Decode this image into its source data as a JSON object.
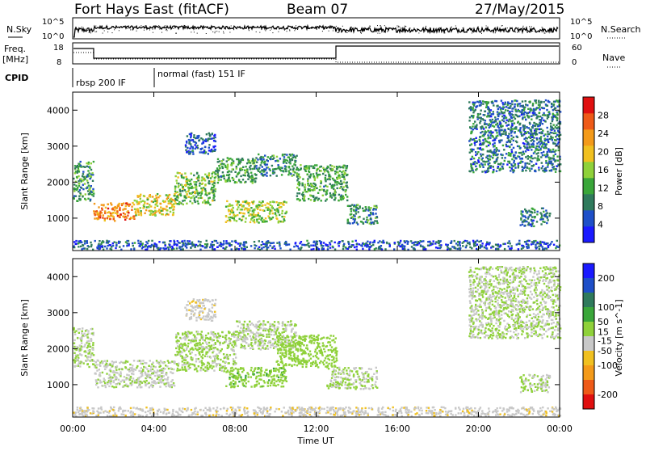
{
  "header": {
    "station": "Fort Hays East (fitACF)",
    "beam": "Beam 07",
    "date": "27/May/2015"
  },
  "summary_panels": {
    "nsky": {
      "label": "N.Sky",
      "right_label": "N.Search",
      "left_ticks": [
        "10^5",
        "10^0"
      ],
      "right_ticks": [
        "10^5",
        "10^0"
      ]
    },
    "freq": {
      "label": "Freq.",
      "unit": "[MHz]",
      "left_ticks": [
        18,
        8
      ],
      "right_label": "Nave",
      "right_ticks": [
        60,
        0
      ]
    },
    "cpid": {
      "label": "CPID",
      "modes": [
        {
          "name": "rbsp 200 IF",
          "start_hour": 0,
          "end_hour": 4
        },
        {
          "name": "normal (fast) 151 IF",
          "start_hour": 4,
          "end_hour": 24
        }
      ]
    }
  },
  "colors": {
    "power_scale": [
      "#1a1aff",
      "#1e4fc8",
      "#2f7a5c",
      "#3aa63a",
      "#8fd13a",
      "#f0c020",
      "#f39a1a",
      "#ee5a18",
      "#e01010"
    ],
    "velocity_scale": [
      "#1a1aff",
      "#1e4fc8",
      "#2f7a5c",
      "#3aa63a",
      "#8fd13a",
      "#c8c8c8",
      "#f0c020",
      "#f39a1a",
      "#ee5a18",
      "#e01010"
    ],
    "gray": "#c4c4c4"
  },
  "chart_data": [
    {
      "type": "heatmap",
      "name": "power",
      "xlabel": "",
      "ylabel": "Slant Range [km]",
      "x_ticks": [
        "00:00",
        "04:00",
        "08:00",
        "12:00",
        "16:00",
        "20:00",
        "00:00"
      ],
      "y_ticks": [
        1000,
        2000,
        3000,
        4000
      ],
      "ylim": [
        100,
        4500
      ],
      "xlim_hours": [
        0,
        24
      ],
      "colorbar": {
        "label": "Power [dB]",
        "ticks": [
          4,
          8,
          12,
          16,
          20,
          24,
          28
        ],
        "range": [
          0,
          32
        ]
      },
      "scatter_bands": [
        {
          "h0": 0.0,
          "h1": 1.0,
          "r0": 1500,
          "r1": 2600,
          "value": 11
        },
        {
          "h0": 1.0,
          "h1": 3.0,
          "r0": 950,
          "r1": 1450,
          "value": 24
        },
        {
          "h0": 3.0,
          "h1": 5.0,
          "r0": 1100,
          "r1": 1700,
          "value": 18
        },
        {
          "h0": 5.0,
          "h1": 7.0,
          "r0": 1400,
          "r1": 2300,
          "value": 14
        },
        {
          "h0": 7.0,
          "h1": 9.0,
          "r0": 2000,
          "r1": 2700,
          "value": 12
        },
        {
          "h0": 9.0,
          "h1": 11.0,
          "r0": 2200,
          "r1": 2800,
          "value": 10
        },
        {
          "h0": 7.5,
          "h1": 10.5,
          "r0": 900,
          "r1": 1500,
          "value": 16
        },
        {
          "h0": 11.0,
          "h1": 13.5,
          "r0": 1500,
          "r1": 2500,
          "value": 12
        },
        {
          "h0": 13.5,
          "h1": 15.0,
          "r0": 850,
          "r1": 1400,
          "value": 10
        },
        {
          "h0": 5.5,
          "h1": 7.0,
          "r0": 2800,
          "r1": 3400,
          "value": 6
        },
        {
          "h0": 19.5,
          "h1": 24.0,
          "r0": 2300,
          "r1": 4300,
          "value": 8
        },
        {
          "h0": 22.0,
          "h1": 23.5,
          "r0": 800,
          "r1": 1300,
          "value": 8
        },
        {
          "h0": 0.0,
          "h1": 24.0,
          "r0": 150,
          "r1": 400,
          "value": 6
        }
      ]
    },
    {
      "type": "heatmap",
      "name": "velocity",
      "xlabel": "Time UT",
      "ylabel": "Slant Range [km]",
      "x_ticks": [
        "00:00",
        "04:00",
        "08:00",
        "12:00",
        "16:00",
        "20:00",
        "00:00"
      ],
      "y_ticks": [
        1000,
        2000,
        3000,
        4000
      ],
      "ylim": [
        100,
        4500
      ],
      "xlim_hours": [
        0,
        24
      ],
      "colorbar": {
        "label": "Velocity [m s^-1]",
        "ticks": [
          200,
          100,
          50,
          15,
          -15,
          -50,
          -100,
          -200
        ],
        "range": [
          -250,
          250
        ]
      },
      "scatter_bands": [
        {
          "h0": 0.0,
          "h1": 1.0,
          "r0": 1500,
          "r1": 2600,
          "value": 0
        },
        {
          "h0": 1.0,
          "h1": 5.0,
          "r0": 950,
          "r1": 1700,
          "value": -5
        },
        {
          "h0": 5.0,
          "h1": 8.0,
          "r0": 1400,
          "r1": 2500,
          "value": 5
        },
        {
          "h0": 8.0,
          "h1": 11.0,
          "r0": 2000,
          "r1": 2800,
          "value": 0
        },
        {
          "h0": 7.5,
          "h1": 10.5,
          "r0": 950,
          "r1": 1500,
          "value": 40
        },
        {
          "h0": 10.0,
          "h1": 13.0,
          "r0": 1500,
          "r1": 2400,
          "value": 30
        },
        {
          "h0": 12.5,
          "h1": 15.0,
          "r0": 900,
          "r1": 1500,
          "value": 0
        },
        {
          "h0": 5.5,
          "h1": 7.0,
          "r0": 2800,
          "r1": 3400,
          "value": -40
        },
        {
          "h0": 19.5,
          "h1": 24.0,
          "r0": 2300,
          "r1": 4300,
          "value": 0
        },
        {
          "h0": 22.0,
          "h1": 23.5,
          "r0": 800,
          "r1": 1300,
          "value": 0
        },
        {
          "h0": 0.0,
          "h1": 24.0,
          "r0": 150,
          "r1": 400,
          "value": -40
        }
      ]
    }
  ]
}
